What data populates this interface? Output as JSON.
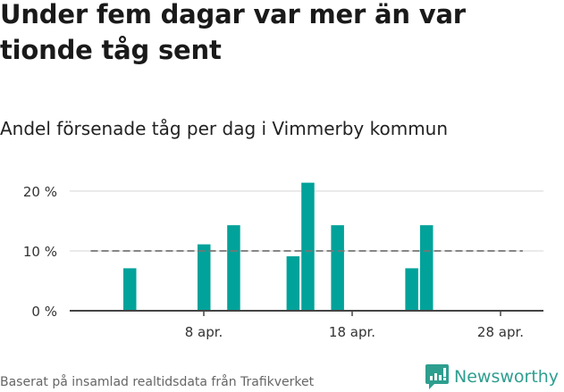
{
  "header": {
    "title": "Under fem dagar var mer än var tionde tåg sent",
    "subtitle": "Andel försenade tåg per dag i Vimmerby kommun"
  },
  "footer": {
    "source": "Baserat på insamlad realtidsdata från Trafikverket",
    "brand": "Newsworthy"
  },
  "colors": {
    "bar": "#00a29a",
    "reference_line": "#777777",
    "grid": "#e3e3e3",
    "axis": "#444444",
    "brand": "#2e9e8f"
  },
  "chart_data": {
    "type": "bar",
    "title": "Andel försenade tåg per dag i Vimmerby kommun",
    "xlabel": "",
    "ylabel": "",
    "x": [
      "3 apr.",
      "8 apr.",
      "10 apr.",
      "14 apr.",
      "15 apr.",
      "17 apr.",
      "22 apr.",
      "23 apr."
    ],
    "x_day": [
      3,
      8,
      10,
      14,
      15,
      17,
      22,
      23
    ],
    "values": [
      7.1,
      11.1,
      14.3,
      9.1,
      21.4,
      14.3,
      7.1,
      14.3
    ],
    "ylim": [
      0,
      21.5
    ],
    "yticks": [
      0,
      10,
      20
    ],
    "ytick_labels": [
      "0 %",
      "10 %",
      "20 %"
    ],
    "xticks": [
      8,
      18,
      28
    ],
    "xtick_labels": [
      "8 apr.",
      "18 apr.",
      "28 apr."
    ],
    "x_range_days": [
      -0.5,
      30.5
    ],
    "reference_line": {
      "value": 10,
      "style": "dashed",
      "from_day": 0.5,
      "to_day": 29.5
    },
    "grid": true,
    "legend": null
  }
}
